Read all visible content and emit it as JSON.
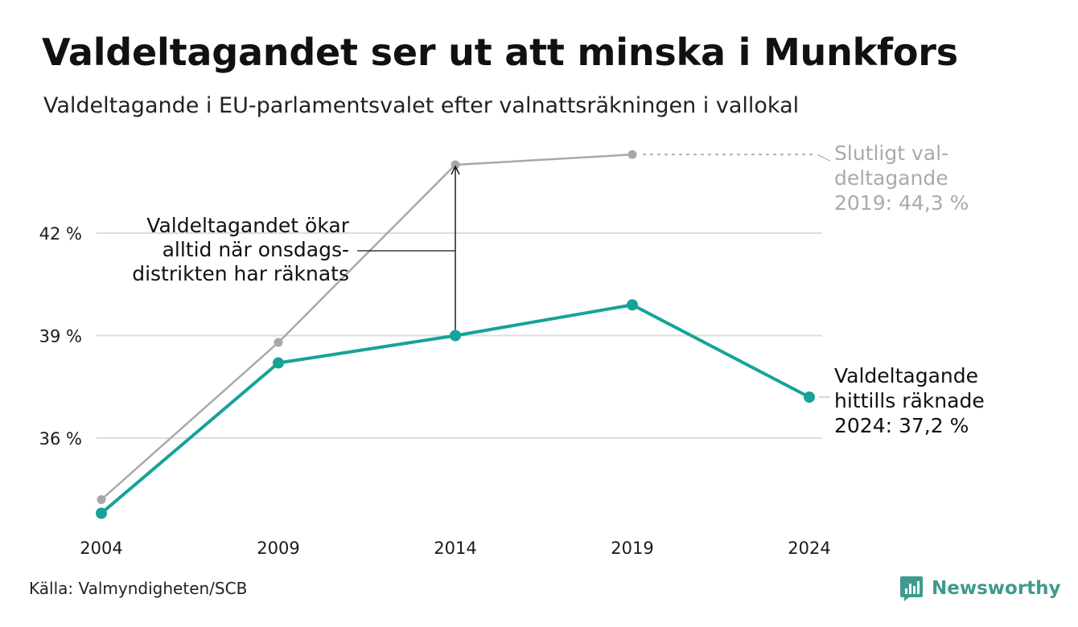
{
  "title": "Valdeltagandet ser ut att minska i Munkfors",
  "subtitle": "Valdeltagande i EU-parlamentsvalet efter valnattsräkningen i vallokal",
  "source": "Källa: Valmyndigheten/SCB",
  "brand": {
    "name": "Newsworthy",
    "icon": "newsworthy-logo-icon",
    "color": "#3f9a8f"
  },
  "chart_data": {
    "type": "line",
    "x": [
      "2004",
      "2009",
      "2014",
      "2019",
      "2024"
    ],
    "ylim": [
      33.0,
      45.0
    ],
    "yticks": [
      36,
      39,
      42
    ],
    "ytick_labels": [
      "36 %",
      "39 %",
      "42 %"
    ],
    "grid": true,
    "series": [
      {
        "key": "final",
        "color": "#a8a8a8",
        "values": [
          34.2,
          38.8,
          44.0,
          44.3,
          null
        ]
      },
      {
        "key": "counted",
        "color": "#16a398",
        "values": [
          33.8,
          38.2,
          39.0,
          39.9,
          37.2
        ]
      }
    ],
    "annotations": {
      "final_label": [
        "Slutligt val-",
        "deltagande",
        "2019: 44,3 %"
      ],
      "counted_label": [
        "Valdeltagande",
        "hittills räknade",
        "2024: 37,2 %"
      ],
      "increase_note": [
        "Valdeltagandet ökar",
        "alltid när onsdags-",
        "distrikten har räknats"
      ]
    }
  }
}
